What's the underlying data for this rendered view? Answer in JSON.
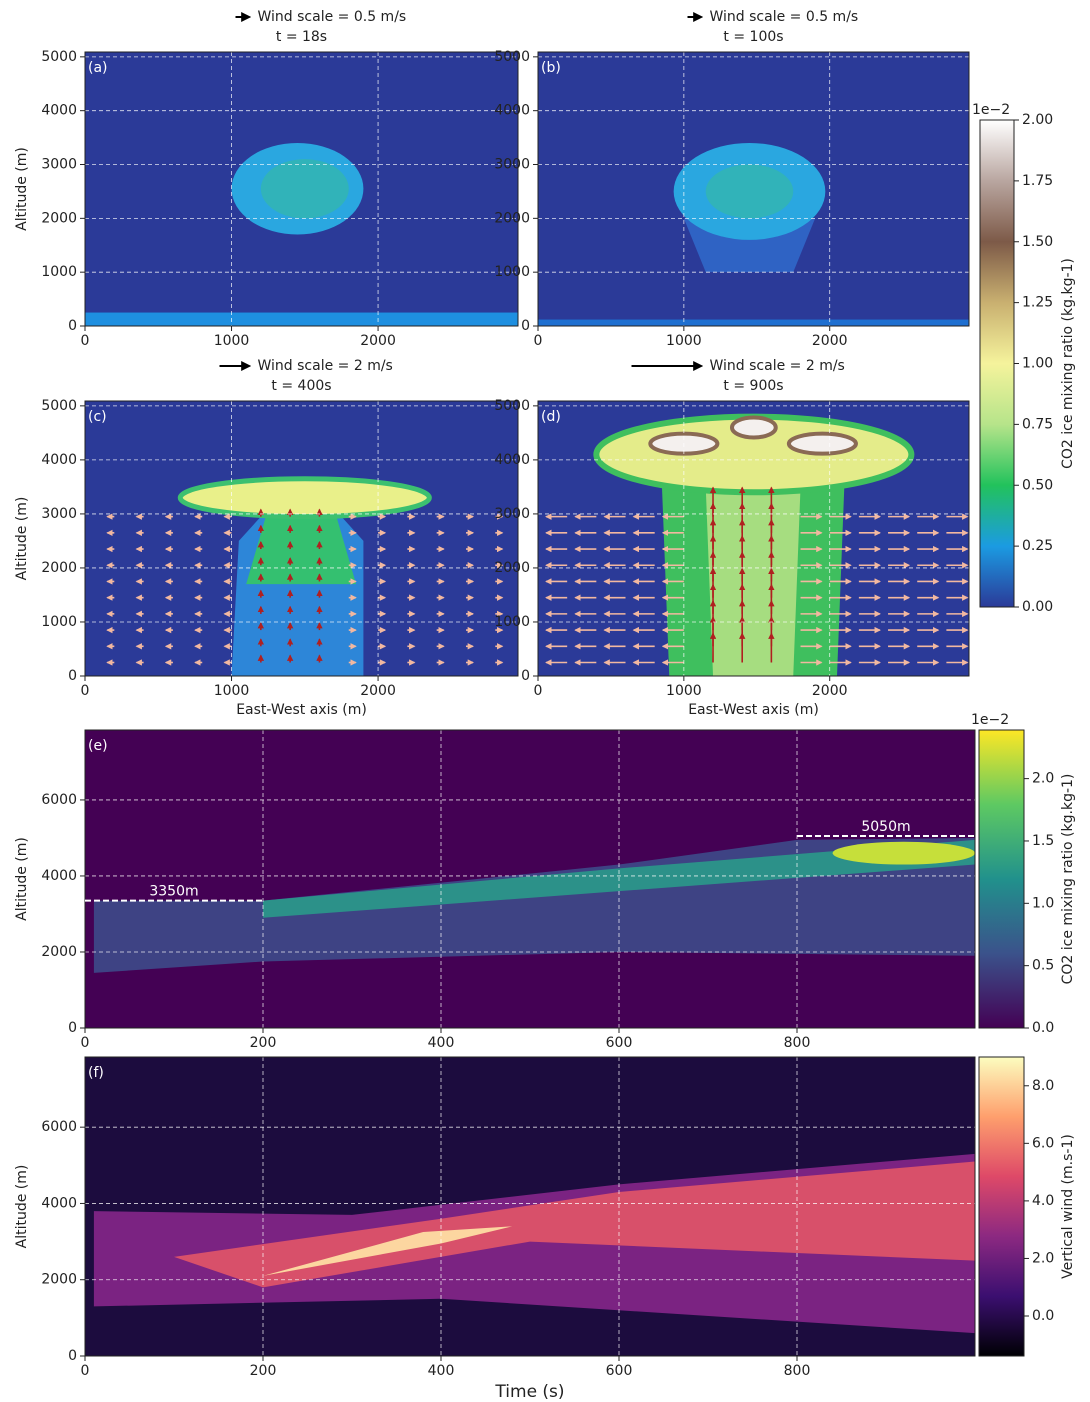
{
  "chart_data": [
    {
      "type": "heatmap",
      "panel_label": "(a)",
      "title": "Wind scale = 0.5 m/s",
      "subtitle": "t = 18s",
      "ylabel": "Altitude (m)",
      "xlim": [
        0,
        2955
      ],
      "xticks": [
        0,
        1000,
        2000
      ],
      "ylim": [
        0,
        5090
      ],
      "yticks": [
        0,
        1000,
        2000,
        3000,
        4000,
        5000
      ],
      "grid": true
    },
    {
      "type": "heatmap",
      "panel_label": "(b)",
      "title": "Wind scale = 0.5 m/s",
      "subtitle": "t = 100s",
      "xlim": [
        0,
        2955
      ],
      "xticks": [
        0,
        1000,
        2000
      ],
      "ylim": [
        0,
        5090
      ],
      "yticks": [
        0,
        1000,
        2000,
        3000,
        4000,
        5000
      ],
      "grid": true
    },
    {
      "type": "heatmap",
      "panel_label": "(c)",
      "title": "Wind scale = 2 m/s",
      "subtitle": "t = 400s",
      "ylabel": "Altitude (m)",
      "xlabel": "East-West axis (m)",
      "xlim": [
        0,
        2955
      ],
      "xticks": [
        0,
        1000,
        2000
      ],
      "ylim": [
        0,
        5090
      ],
      "yticks": [
        0,
        1000,
        2000,
        3000,
        4000,
        5000
      ],
      "grid": true
    },
    {
      "type": "heatmap",
      "panel_label": "(d)",
      "title": "Wind scale = 2 m/s",
      "subtitle": "t = 900s",
      "xlabel": "East-West axis (m)",
      "xlim": [
        0,
        2955
      ],
      "xticks": [
        0,
        1000,
        2000
      ],
      "ylim": [
        0,
        5090
      ],
      "yticks": [
        0,
        1000,
        2000,
        3000,
        4000,
        5000
      ],
      "grid": true
    },
    {
      "type": "colorbar",
      "label": "CO2 ice mixing ratio (kg.kg-1)",
      "offset_label": "1e−2",
      "ylim": [
        0,
        2
      ],
      "yticks": [
        {
          "value": 0,
          "label": "0.00"
        },
        {
          "value": 0.25,
          "label": "0.25"
        },
        {
          "value": 0.5,
          "label": "0.50"
        },
        {
          "value": 0.75,
          "label": "0.75"
        },
        {
          "value": 1,
          "label": "1.00"
        },
        {
          "value": 1.25,
          "label": "1.25"
        },
        {
          "value": 1.5,
          "label": "1.50"
        },
        {
          "value": 1.75,
          "label": "1.75"
        },
        {
          "value": 2,
          "label": "2.00"
        }
      ],
      "colormap": [
        "#2b3a98",
        "#1b9be2",
        "#22c25c",
        "#b6e48a",
        "#f5f39c",
        "#c9b070",
        "#7d5a48",
        "#b9a6a0",
        "#ffffff"
      ]
    },
    {
      "type": "heatmap",
      "panel_label": "(e)",
      "ylabel": "Altitude (m)",
      "xlim": [
        0,
        1000
      ],
      "xticks": [
        0,
        200,
        400,
        600,
        800
      ],
      "ylim": [
        0,
        7840
      ],
      "yticks": [
        0,
        2000,
        4000,
        6000
      ],
      "grid": true,
      "annotations": [
        {
          "text": "3350m",
          "y": 3350,
          "x": [
            0,
            200
          ]
        },
        {
          "text": "5050m",
          "y": 5050,
          "x": [
            800,
            1000
          ]
        }
      ]
    },
    {
      "type": "colorbar",
      "label": "CO2 ice mixing ratio (kg.kg-1)",
      "offset_label": "1e−2",
      "ylim": [
        0,
        2.39
      ],
      "yticks": [
        {
          "value": 0,
          "label": "0.0"
        },
        {
          "value": 0.5,
          "label": "0.5"
        },
        {
          "value": 1,
          "label": "1.0"
        },
        {
          "value": 1.5,
          "label": "1.5"
        },
        {
          "value": 2,
          "label": "2.0"
        }
      ],
      "colormap": [
        "#440154",
        "#3b528b",
        "#21918c",
        "#5ec962",
        "#fde725"
      ]
    },
    {
      "type": "heatmap",
      "panel_label": "(f)",
      "ylabel": "Altitude (m)",
      "xlabel": "Time (s)",
      "xlim": [
        0,
        1000
      ],
      "xticks": [
        0,
        200,
        400,
        600,
        800
      ],
      "ylim": [
        0,
        7840
      ],
      "yticks": [
        0,
        2000,
        4000,
        6000
      ],
      "grid": true
    },
    {
      "type": "colorbar",
      "label": "Vertical wind (m.s-1)",
      "ylim": [
        -1.39,
        9
      ],
      "yticks": [
        {
          "value": 0,
          "label": "0.0"
        },
        {
          "value": 2,
          "label": "2.0"
        },
        {
          "value": 4,
          "label": "4.0"
        },
        {
          "value": 6,
          "label": "6.0"
        },
        {
          "value": 8,
          "label": "8.0"
        }
      ],
      "colormap": [
        "#000004",
        "#3b0f70",
        "#8c2981",
        "#de4968",
        "#fe9f6d",
        "#fcfdbf"
      ]
    }
  ]
}
